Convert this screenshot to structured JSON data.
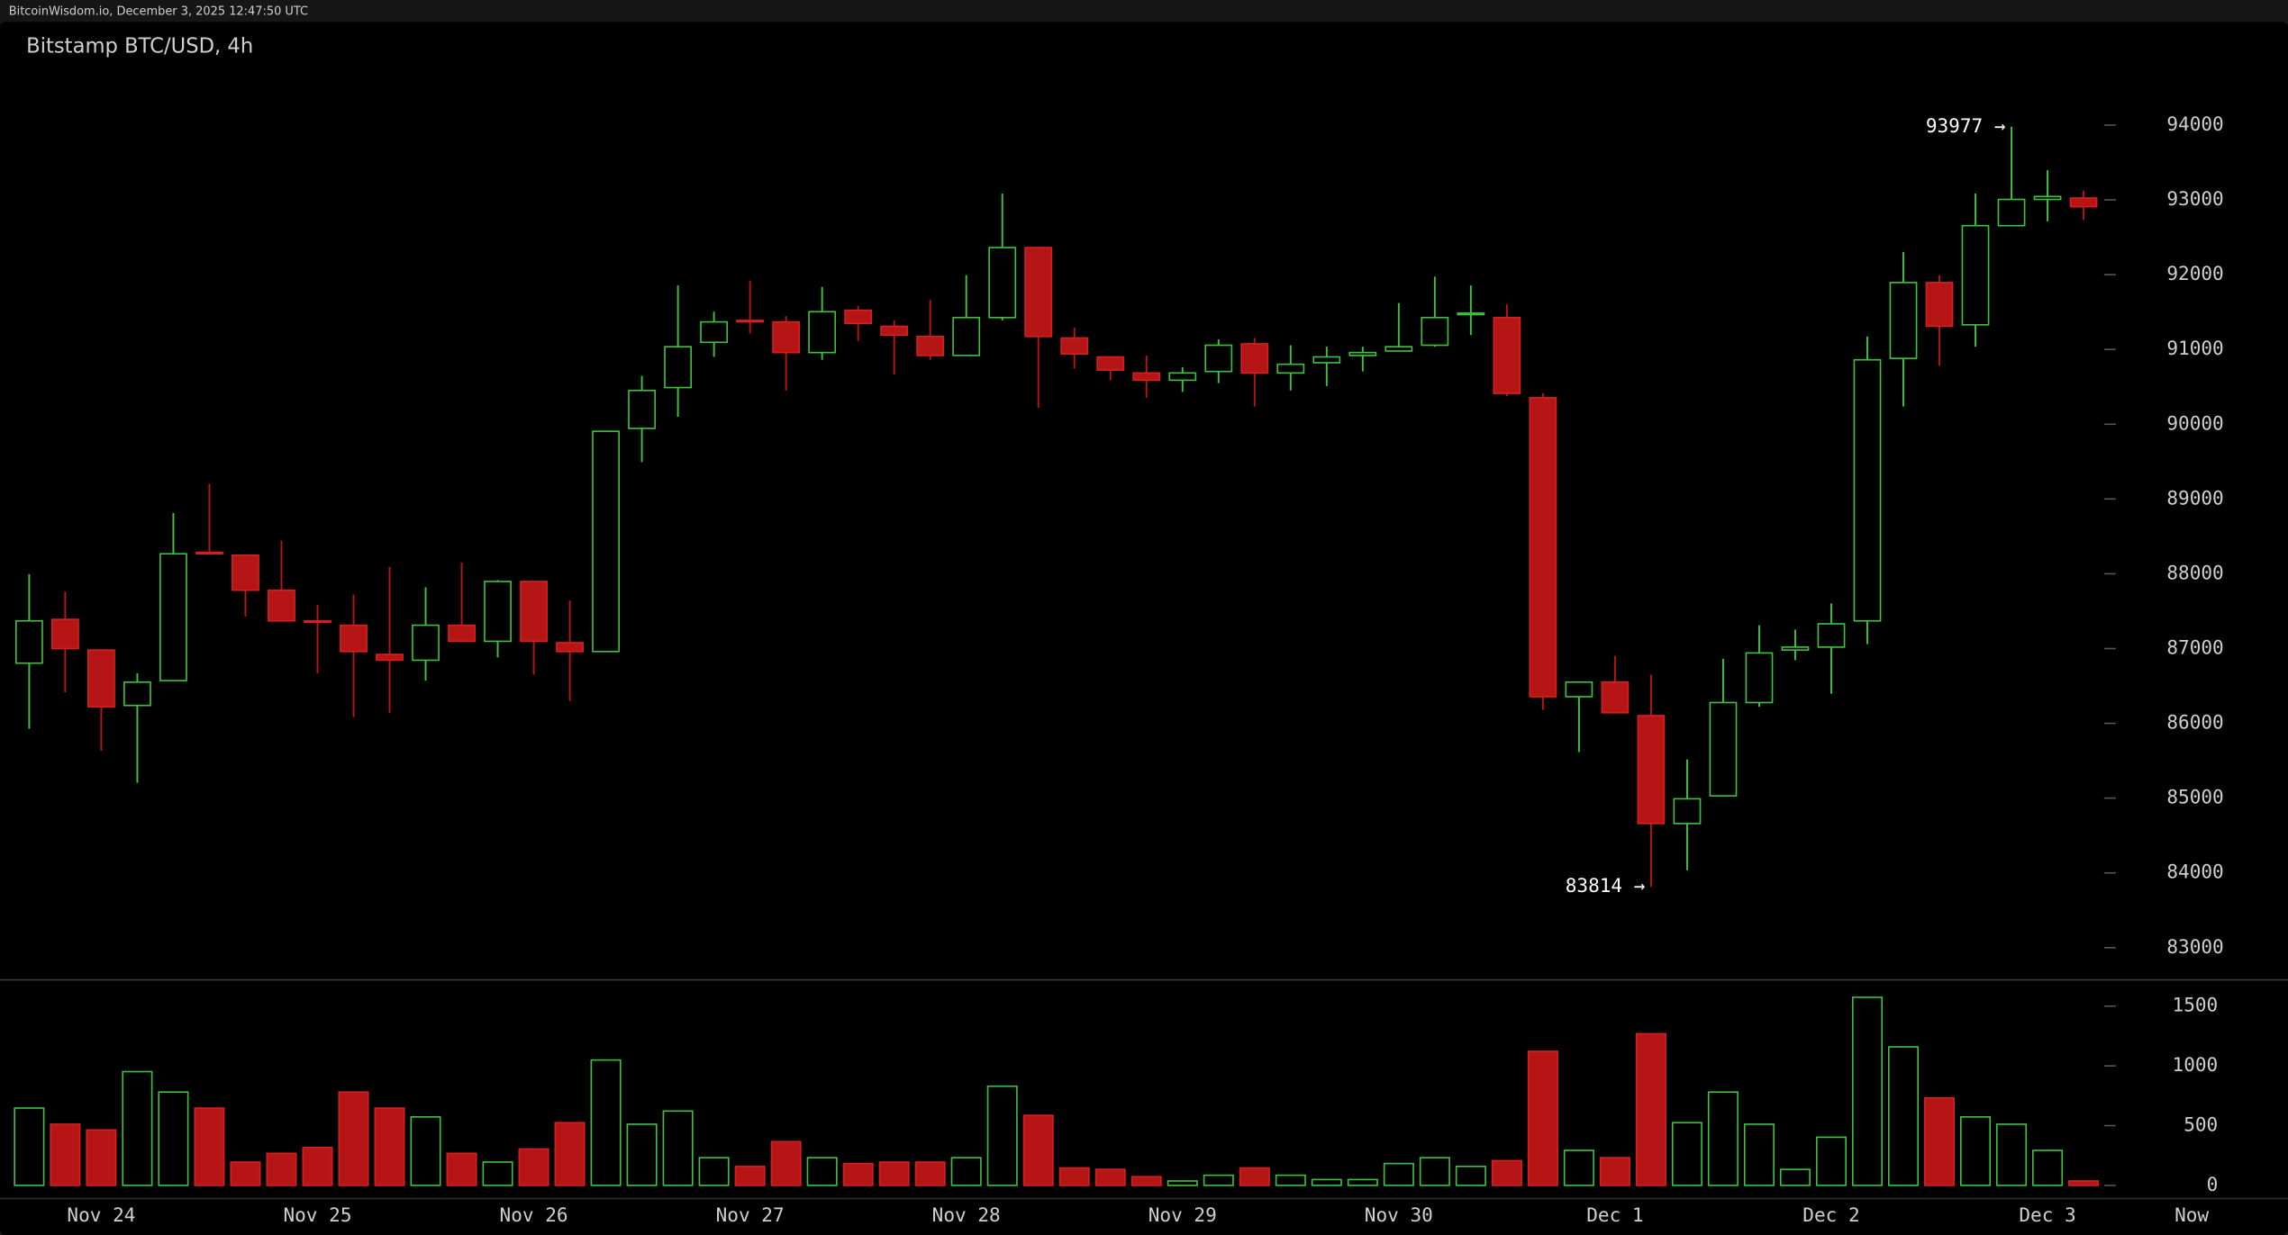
{
  "header": "BitcoinWisdom.io, December 3, 2025 12:47:50 UTC",
  "chart_data": {
    "type": "candlestick",
    "title": "Bitstamp BTC/USD, 4h",
    "categories": [
      null,
      null,
      "Nov 24",
      null,
      null,
      null,
      null,
      null,
      "Nov 25",
      null,
      null,
      null,
      null,
      null,
      "Nov 26",
      null,
      null,
      null,
      null,
      null,
      "Nov 27",
      null,
      null,
      null,
      null,
      null,
      "Nov 28",
      null,
      null,
      null,
      null,
      null,
      "Nov 29",
      null,
      null,
      null,
      null,
      null,
      "Nov 30",
      null,
      null,
      null,
      null,
      null,
      "Dec 1",
      null,
      null,
      null,
      null,
      null,
      "Dec 2",
      null,
      null,
      null,
      null,
      null,
      "Dec 3",
      null
    ],
    "now_label": "Now",
    "open": [
      86805,
      87390,
      86980,
      86239,
      86571,
      88287,
      88248,
      87780,
      87370,
      87312,
      86922,
      86844,
      87312,
      87097,
      87897,
      87078,
      86960,
      89944,
      90490,
      91095,
      91388,
      91368,
      90958,
      91524,
      91309,
      91173,
      90919,
      91426,
      92362,
      91153,
      90900,
      90685,
      90588,
      90705,
      91075,
      90685,
      90822,
      90919,
      90978,
      91056,
      91465,
      91426,
      90354,
      86356,
      86551,
      86103,
      84660,
      85030,
      86278,
      86980,
      87019,
      87370,
      90880,
      91894,
      91329,
      92655,
      93006,
      93025
    ],
    "high": [
      87994,
      87760,
      86980,
      86668,
      88813,
      89203,
      88248,
      88442,
      87584,
      87721,
      88092,
      87819,
      88150,
      87916,
      87897,
      87643,
      89905,
      90646,
      91855,
      91504,
      91914,
      91446,
      91836,
      91582,
      91387,
      91660,
      91992,
      93084,
      92362,
      91290,
      90900,
      90919,
      90763,
      91134,
      91153,
      91056,
      91036,
      91036,
      91621,
      91972,
      91855,
      91602,
      90412,
      86551,
      86902,
      86649,
      85518,
      86863,
      87312,
      87253,
      87604,
      91173,
      92304,
      91992,
      93084,
      93977,
      93396,
      93123
    ],
    "low": [
      85927,
      86415,
      85634,
      85205,
      86571,
      88267,
      87429,
      87370,
      86668,
      86083,
      86142,
      86571,
      87097,
      86883,
      86649,
      86298,
      86960,
      89495,
      90100,
      90900,
      91212,
      90451,
      90861,
      91114,
      90666,
      90861,
      90919,
      91387,
      90217,
      90744,
      90588,
      90354,
      90432,
      90549,
      90237,
      90451,
      90510,
      90705,
      90978,
      91036,
      91192,
      90373,
      86180,
      85615,
      86142,
      83814,
      84036,
      85030,
      86220,
      86844,
      86395,
      87058,
      90237,
      90783,
      91036,
      92655,
      92713,
      92733
    ],
    "close": [
      87370,
      86999,
      86220,
      86551,
      88267,
      88267,
      87780,
      87370,
      87350,
      86960,
      86844,
      87312,
      87097,
      87897,
      87097,
      86960,
      89905,
      90451,
      91036,
      91368,
      91368,
      90958,
      91504,
      91348,
      91192,
      90919,
      91426,
      92362,
      91173,
      90939,
      90724,
      90588,
      90685,
      91056,
      90685,
      90802,
      90900,
      90958,
      91036,
      91426,
      91485,
      90412,
      86356,
      86551,
      86142,
      84660,
      84991,
      86278,
      86941,
      87019,
      87331,
      90861,
      91894,
      91309,
      92655,
      93006,
      93045,
      92908
    ],
    "volume": [
      647,
      512,
      464,
      952,
      781,
      647,
      195,
      268,
      317,
      781,
      647,
      573,
      268,
      195,
      305,
      525,
      1049,
      512,
      622,
      232,
      159,
      366,
      232,
      183,
      195,
      195,
      232,
      830,
      586,
      146,
      134,
      73,
      37,
      85,
      146,
      85,
      49,
      49,
      183,
      232,
      159,
      207,
      1122,
      293,
      232,
      1269,
      525,
      781,
      512,
      134,
      403,
      1574,
      1159,
      732,
      573,
      512,
      293,
      37
    ],
    "ylim": [
      82570,
      95380
    ],
    "yticks": [
      83000,
      84000,
      85000,
      86000,
      87000,
      88000,
      89000,
      90000,
      91000,
      92000,
      93000,
      94000
    ],
    "volume_ylim": [
      -110,
      1720
    ],
    "volume_yticks": [
      0,
      500,
      1000,
      1500
    ],
    "annotations": [
      {
        "text": "93977 →",
        "value": 93977
      },
      {
        "text": "83814 →",
        "value": 83814
      }
    ],
    "up_color": "#3ec13e",
    "down_color": "#b51515"
  }
}
